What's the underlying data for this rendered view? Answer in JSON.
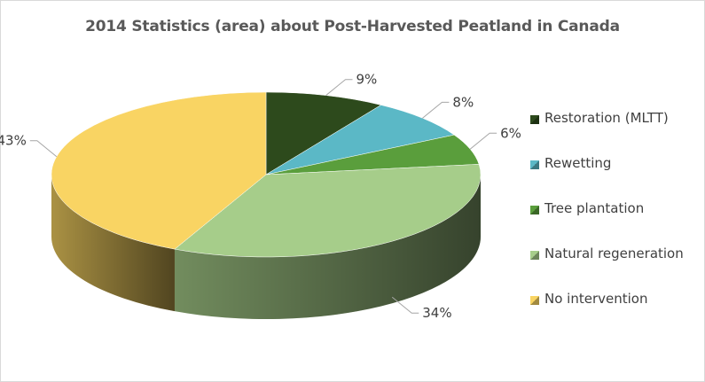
{
  "chart_data": {
    "type": "pie",
    "title": "2014 Statistics (area) about Post-Harvested Peatland in Canada",
    "categories": [
      "Restoration (MLTT)",
      "Rewetting",
      "Tree plantation",
      "Natural regeneration",
      "No intervention"
    ],
    "values": [
      9,
      8,
      6,
      34,
      43
    ],
    "value_labels": [
      "9%",
      "8%",
      "6%",
      "34%",
      "43%"
    ],
    "colors": [
      "#2d4a1c",
      "#5bb8c6",
      "#5a9e3c",
      "#a6cd8a",
      "#f9d463"
    ],
    "legend_position": "right",
    "style": "3d"
  }
}
